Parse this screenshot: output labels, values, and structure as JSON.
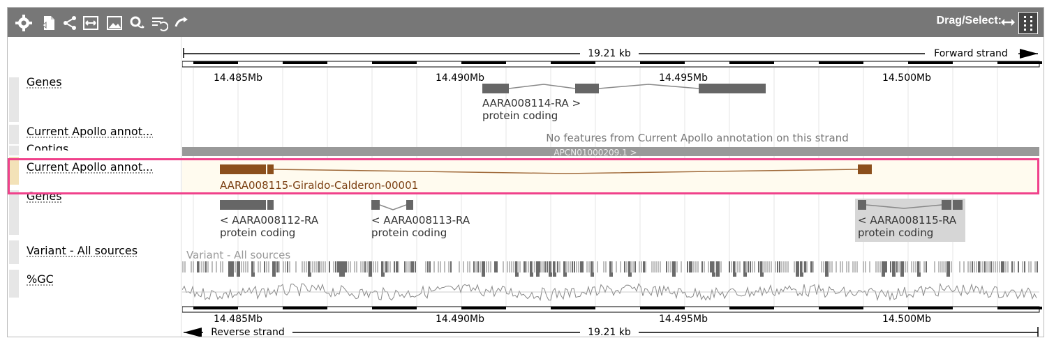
{
  "toolbar": {
    "icons": [
      "gear-icon",
      "export-icon",
      "share-icon",
      "resize-icon",
      "image-icon",
      "refresh-settings-icon",
      "reset-order-icon",
      "reset-icon"
    ],
    "drag_select_label": "Drag/Select:"
  },
  "tracks": [
    {
      "id": "genes-forward",
      "label": "Genes"
    },
    {
      "id": "apollo-forward",
      "label": "Current Apollo annot..."
    },
    {
      "id": "contigs",
      "label": "Contigs"
    },
    {
      "id": "apollo-highlight",
      "label": "Current Apollo annot..."
    },
    {
      "id": "genes-reverse",
      "label": "Genes"
    },
    {
      "id": "variant",
      "label": "Variant - All sources"
    },
    {
      "id": "gc",
      "label": "%GC"
    }
  ],
  "scale": {
    "length_label": "19.21 kb",
    "forward_strand": "Forward strand",
    "reverse_strand": "Reverse strand",
    "ticks": [
      "14.485Mb",
      "14.490Mb",
      "14.495Mb",
      "14.500Mb"
    ]
  },
  "features": {
    "gene_fwd": {
      "name": "AARA008114-RA >",
      "biotype": "protein coding"
    },
    "apollo_fwd_message": "No features from Current Apollo annotation on this strand",
    "contig_label": "APCN01000209.1 >",
    "apollo_feature": "AARA008115-Giraldo-Calderon-00001",
    "genes_rev": [
      {
        "name": "< AARA008112-RA",
        "biotype": "protein coding"
      },
      {
        "name": "< AARA008113-RA",
        "biotype": "protein coding"
      },
      {
        "name": "< AARA008115-RA",
        "biotype": "protein coding"
      }
    ],
    "variant_label": "Variant - All sources"
  },
  "colors": {
    "gene": "#666666",
    "apollo": "#8b4f1c",
    "highlight": "#f0418b",
    "contig": "#999999",
    "toolbar": "#777777"
  }
}
